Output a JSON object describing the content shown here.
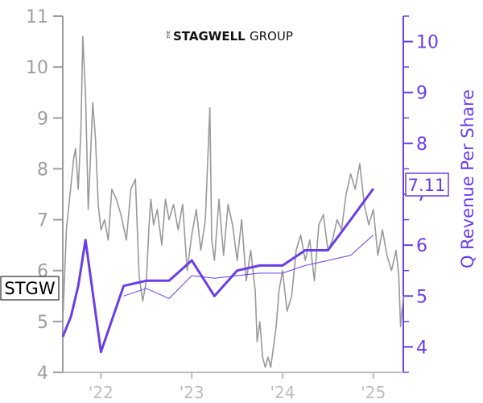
{
  "logo": {
    "prefix": "THE",
    "main": "STAGWELL",
    "suffix": "GROUP"
  },
  "ticker": "STGW",
  "last_value_label": "7.11",
  "colors": {
    "price": "#999999",
    "revenue": "#6a3de8",
    "axis_left": "#9e9e9e",
    "axis_right": "#6a3de8",
    "axis_x": "#bdbdbd"
  },
  "chart_data": {
    "type": "line",
    "xlabel": "",
    "ylabel_left": "",
    "ylabel_right": "Q Revenue Per Share",
    "x_ticks": [
      "'22",
      "'23",
      "'24",
      "'25"
    ],
    "x_tick_values": [
      2022.0,
      2023.0,
      2024.0,
      2025.0
    ],
    "xlim": [
      2021.58,
      2025.33
    ],
    "ylim_left": [
      4,
      11
    ],
    "yticks_left": [
      4,
      5,
      6,
      7,
      8,
      9,
      10,
      11
    ],
    "ylim_right": [
      3.5,
      10.5
    ],
    "yticks_right": [
      4,
      5,
      6,
      7,
      8,
      9,
      10
    ],
    "series": [
      {
        "axis": "left",
        "style": "price",
        "x": [
          2021.58,
          2021.62,
          2021.66,
          2021.7,
          2021.72,
          2021.75,
          2021.78,
          2021.8,
          2021.83,
          2021.86,
          2021.88,
          2021.91,
          2021.94,
          2021.97,
          2022.0,
          2022.04,
          2022.08,
          2022.12,
          2022.17,
          2022.22,
          2022.28,
          2022.33,
          2022.38,
          2022.42,
          2022.46,
          2022.5,
          2022.53,
          2022.55,
          2022.58,
          2022.62,
          2022.67,
          2022.71,
          2022.75,
          2022.8,
          2022.85,
          2022.9,
          2022.95,
          2023.0,
          2023.05,
          2023.1,
          2023.15,
          2023.2,
          2023.22,
          2023.25,
          2023.3,
          2023.35,
          2023.4,
          2023.45,
          2023.5,
          2023.55,
          2023.6,
          2023.65,
          2023.7,
          2023.72,
          2023.75,
          2023.78,
          2023.81,
          2023.84,
          2023.87,
          2023.9,
          2023.93,
          2023.96,
          2024.0,
          2024.05,
          2024.1,
          2024.15,
          2024.2,
          2024.25,
          2024.3,
          2024.35,
          2024.4,
          2024.45,
          2024.5,
          2024.55,
          2024.6,
          2024.65,
          2024.7,
          2024.75,
          2024.8,
          2024.85,
          2024.9,
          2024.95,
          2025.0,
          2025.05,
          2025.1,
          2025.15,
          2025.2,
          2025.25,
          2025.28,
          2025.3,
          2025.33
        ],
        "y": [
          5.0,
          6.8,
          7.5,
          8.2,
          8.4,
          7.6,
          8.8,
          10.6,
          9.5,
          7.2,
          8.0,
          9.3,
          8.6,
          7.3,
          6.8,
          7.0,
          6.6,
          7.6,
          7.4,
          7.1,
          6.6,
          7.6,
          7.8,
          5.9,
          5.4,
          5.8,
          6.9,
          7.4,
          6.9,
          7.2,
          6.5,
          7.4,
          7.0,
          7.3,
          6.8,
          7.3,
          6.0,
          6.7,
          7.2,
          6.4,
          7.0,
          9.2,
          6.6,
          6.2,
          7.4,
          6.3,
          7.3,
          6.9,
          6.2,
          7.0,
          5.8,
          6.4,
          5.6,
          4.6,
          5.0,
          4.3,
          4.1,
          4.3,
          4.1,
          4.5,
          4.9,
          5.6,
          6.0,
          5.2,
          5.5,
          6.4,
          6.7,
          6.2,
          6.6,
          5.8,
          6.9,
          7.1,
          6.4,
          6.6,
          7.0,
          6.8,
          7.5,
          7.9,
          7.6,
          8.1,
          7.3,
          6.9,
          7.2,
          6.3,
          6.8,
          6.3,
          6.0,
          6.4,
          5.9,
          4.9,
          5.5
        ],
        "name": ""
      },
      {
        "axis": "right",
        "style": "revenue",
        "x": [
          2021.58,
          2021.67,
          2021.75,
          2021.83,
          2022.0,
          2022.25,
          2022.5,
          2022.75,
          2023.0,
          2023.25,
          2023.5,
          2023.75,
          2024.0,
          2024.25,
          2024.5,
          2024.75,
          2025.0
        ],
        "y": [
          4.2,
          4.6,
          5.2,
          6.1,
          3.9,
          5.2,
          5.3,
          5.3,
          5.7,
          5.0,
          5.5,
          5.6,
          5.6,
          5.9,
          5.9,
          6.5,
          7.11
        ],
        "name": ""
      },
      {
        "axis": "right",
        "style": "revenue-thin",
        "x": [
          2022.25,
          2022.5,
          2022.75,
          2023.0,
          2023.25,
          2023.5,
          2023.75,
          2024.0,
          2024.25,
          2024.5,
          2024.75,
          2025.0
        ],
        "y": [
          5.0,
          5.15,
          4.95,
          5.4,
          5.35,
          5.4,
          5.45,
          5.45,
          5.6,
          5.7,
          5.8,
          6.2
        ],
        "name": ""
      }
    ]
  }
}
